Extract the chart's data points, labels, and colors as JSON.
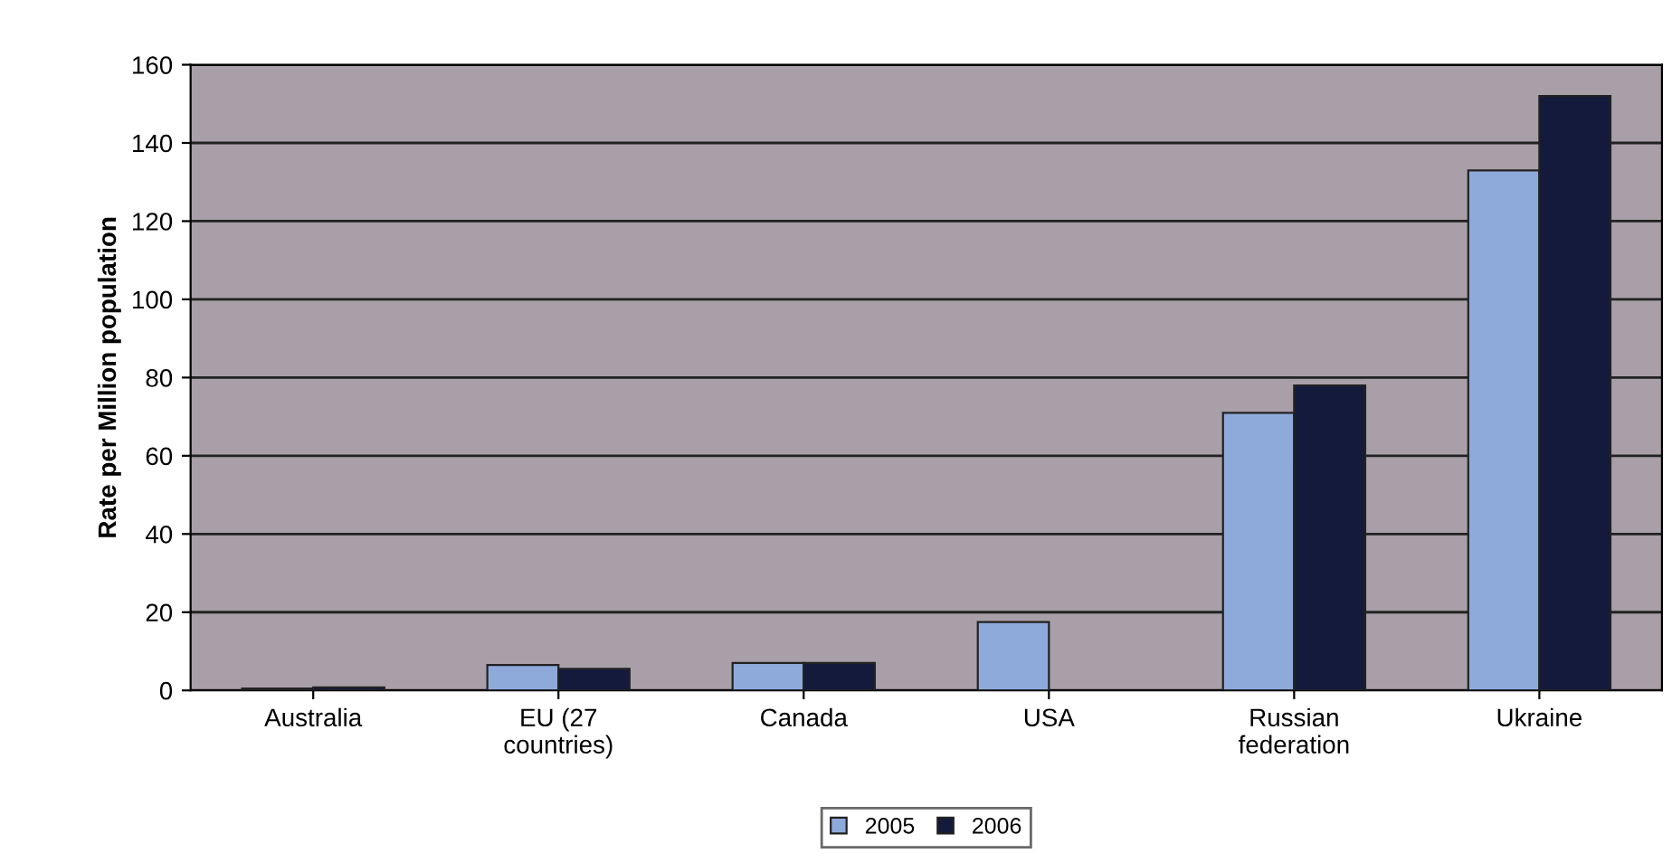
{
  "chart_data": {
    "type": "bar",
    "ylabel": "Rate per Million population",
    "categories": [
      "Australia",
      "EU (27\ncountries)",
      "Canada",
      "USA",
      "Russian\nfederation",
      "Ukraine"
    ],
    "series": [
      {
        "name": "2005",
        "color": "#8eaadb",
        "values": [
          0.5,
          6.5,
          7,
          17.5,
          71,
          133
        ]
      },
      {
        "name": "2006",
        "color": "#141a3c",
        "values": [
          0.8,
          5.5,
          7,
          null,
          78,
          152
        ]
      }
    ],
    "ylim": [
      0,
      160
    ],
    "yticks": [
      0,
      20,
      40,
      60,
      80,
      100,
      120,
      140,
      160
    ],
    "grid": "y",
    "legend": "bottom"
  }
}
